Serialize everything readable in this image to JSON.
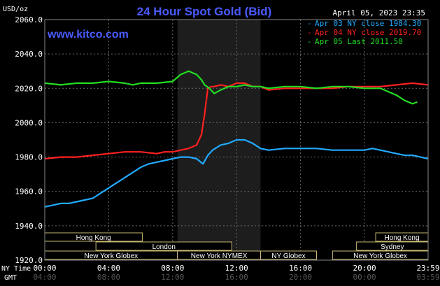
{
  "chart_data": {
    "type": "line",
    "title": "24 Hour Spot Gold (Bid)",
    "ylabel": "USD/oz",
    "watermark": "www.kitco.com",
    "date": "April 05, 2023 23:35",
    "ylim": [
      1920,
      2060
    ],
    "y_ticks": [
      "2060.0",
      "2040.0",
      "2020.0",
      "2000.0",
      "1980.0",
      "1960.0",
      "1940.0",
      "1920.0"
    ],
    "y_tick_values": [
      2060,
      2040,
      2020,
      2000,
      1980,
      1960,
      1940,
      1920
    ],
    "x_label_ny": "NY Time",
    "x_label_gmt": "GMT",
    "x_ticks_ny": [
      "00:00",
      "04:00",
      "08:00",
      "12:00",
      "16:00",
      "20:00",
      "23:59"
    ],
    "x_ticks_gmt": [
      "04:00",
      "08:00",
      "12:00",
      "16:00",
      "20:00",
      "00:00",
      "03:59"
    ],
    "x_tick_hours": [
      0,
      4,
      8,
      12,
      16,
      20,
      23.98
    ],
    "xlim": [
      0,
      23.98
    ],
    "shaded_hours": [
      8.3,
      13.5
    ],
    "legend": [
      {
        "label": "Apr 03 NY close 1984.30",
        "color": "#22aaff"
      },
      {
        "label": "Apr 04 NY close 2019.70",
        "color": "#ff2020"
      },
      {
        "label": "Apr 05 Last 2011.50",
        "color": "#22dd22"
      }
    ],
    "series": [
      {
        "name": "Apr 03 NY close 1984.30",
        "color": "#22aaff",
        "x": [
          0,
          0.5,
          1,
          1.5,
          2,
          2.5,
          3,
          3.5,
          4,
          4.5,
          5,
          5.5,
          6,
          6.5,
          7,
          7.5,
          8,
          8.5,
          9,
          9.5,
          9.9,
          10.2,
          10.5,
          11,
          11.5,
          12,
          12.5,
          13,
          13.5,
          14,
          15,
          16,
          17,
          18,
          19,
          20,
          20.5,
          21,
          21.5,
          22,
          22.5,
          23,
          23.5,
          23.98
        ],
        "values": [
          1951,
          1952,
          1953,
          1953,
          1954,
          1955,
          1956,
          1959,
          1962,
          1965,
          1968,
          1971,
          1974,
          1976,
          1977,
          1978,
          1979,
          1980,
          1980,
          1979,
          1976,
          1981,
          1984,
          1987,
          1988,
          1990,
          1990,
          1988,
          1985,
          1984,
          1985,
          1985,
          1985,
          1984,
          1984,
          1984,
          1985,
          1984,
          1983,
          1982,
          1981,
          1981,
          1980,
          1979
        ]
      },
      {
        "name": "Apr 04 NY close 2019.70",
        "color": "#ff2020",
        "x": [
          0,
          1,
          2,
          3,
          4,
          5,
          6,
          7,
          7.5,
          8,
          8.5,
          9,
          9.5,
          9.8,
          10.0,
          10.2,
          10.4,
          10.6,
          11,
          11.5,
          12,
          12.5,
          13,
          13.5,
          14,
          15,
          16,
          17,
          18,
          19,
          20,
          21,
          22,
          23,
          23.98
        ],
        "values": [
          1979,
          1980,
          1980,
          1981,
          1982,
          1983,
          1983,
          1982,
          1983,
          1983,
          1984,
          1985,
          1987,
          1993,
          2005,
          2020,
          2021,
          2021,
          2022,
          2021,
          2023,
          2023,
          2021,
          2021,
          2019,
          2020,
          2020,
          2020,
          2020,
          2021,
          2021,
          2021,
          2022,
          2023,
          2022
        ]
      },
      {
        "name": "Apr 05 Last 2011.50",
        "color": "#22dd22",
        "x": [
          0,
          1,
          2,
          3,
          4,
          5,
          5.5,
          6,
          7,
          8,
          8.5,
          9,
          9.5,
          9.8,
          10.0,
          10.3,
          10.6,
          11,
          11.5,
          12,
          12.5,
          13,
          13.5,
          14,
          15,
          16,
          17,
          18,
          19,
          20,
          21,
          21.5,
          22,
          22.5,
          23,
          23.3
        ],
        "values": [
          2023,
          2022,
          2023,
          2023,
          2024,
          2023,
          2022,
          2023,
          2023,
          2024,
          2028,
          2030,
          2028,
          2025,
          2022,
          2020,
          2017,
          2019,
          2021,
          2021,
          2022,
          2021,
          2021,
          2020,
          2021,
          2021,
          2020,
          2021,
          2021,
          2020,
          2020,
          2018,
          2016,
          2013,
          2011,
          2012
        ]
      }
    ],
    "markets": [
      {
        "label": "Hong Kong",
        "start": 0,
        "end": 6.1,
        "row": 0
      },
      {
        "label": "Hong Kong",
        "start": 20.7,
        "end": 23.98,
        "row": 0
      },
      {
        "label": "London",
        "start": 3.2,
        "end": 11.7,
        "row": 1
      },
      {
        "label": "Sydney",
        "start": 19.5,
        "end": 23.98,
        "row": 1
      },
      {
        "label": "New York Globex",
        "start": 0,
        "end": 8.3,
        "row": 2
      },
      {
        "label": "New York NYMEX",
        "start": 8.3,
        "end": 13.5,
        "row": 2
      },
      {
        "label": "NY Globex",
        "start": 13.5,
        "end": 17.0,
        "row": 2
      },
      {
        "label": "New York Globex",
        "start": 18.0,
        "end": 23.98,
        "row": 2
      }
    ]
  }
}
